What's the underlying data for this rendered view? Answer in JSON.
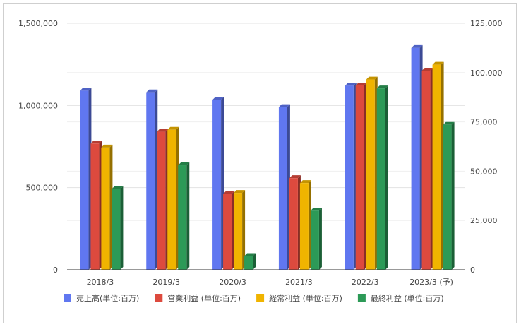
{
  "chart_data": {
    "type": "bar",
    "categories": [
      "2018/3",
      "2019/3",
      "2020/3",
      "2021/3",
      "2022/3",
      "2023/3 (予)"
    ],
    "series": [
      {
        "name": "売上高(単位:百万)",
        "axis": "left",
        "color": "#6077f0",
        "values": [
          1090000,
          1080000,
          1035000,
          990000,
          1120000,
          1350000
        ]
      },
      {
        "name": "営業利益 (単位:百万)",
        "axis": "right",
        "color": "#dd4a3e",
        "values": [
          64000,
          70000,
          38500,
          46500,
          93500,
          101000
        ]
      },
      {
        "name": "経常利益 (単位:百万)",
        "axis": "right",
        "color": "#f0b400",
        "values": [
          62000,
          71000,
          39000,
          44000,
          96500,
          104000
        ]
      },
      {
        "name": "最終利益 (単位:百万)",
        "axis": "right",
        "color": "#2c9a57",
        "values": [
          41000,
          53000,
          7000,
          30000,
          92000,
          73500
        ]
      }
    ],
    "left_axis": {
      "ylim": [
        0,
        1500000
      ],
      "ticks": [
        0,
        500000,
        1000000,
        1500000
      ],
      "tick_labels": [
        "0",
        "500,000",
        "1,000,000",
        "1,500,000"
      ]
    },
    "right_axis": {
      "ylim": [
        0,
        125000
      ],
      "ticks": [
        0,
        25000,
        50000,
        75000,
        100000,
        125000
      ],
      "tick_labels": [
        "0",
        "25,000",
        "50,000",
        "75,000",
        "100,000",
        "125,000"
      ]
    },
    "gridlines": true,
    "legend": "bottom",
    "style": "3d-bar"
  }
}
